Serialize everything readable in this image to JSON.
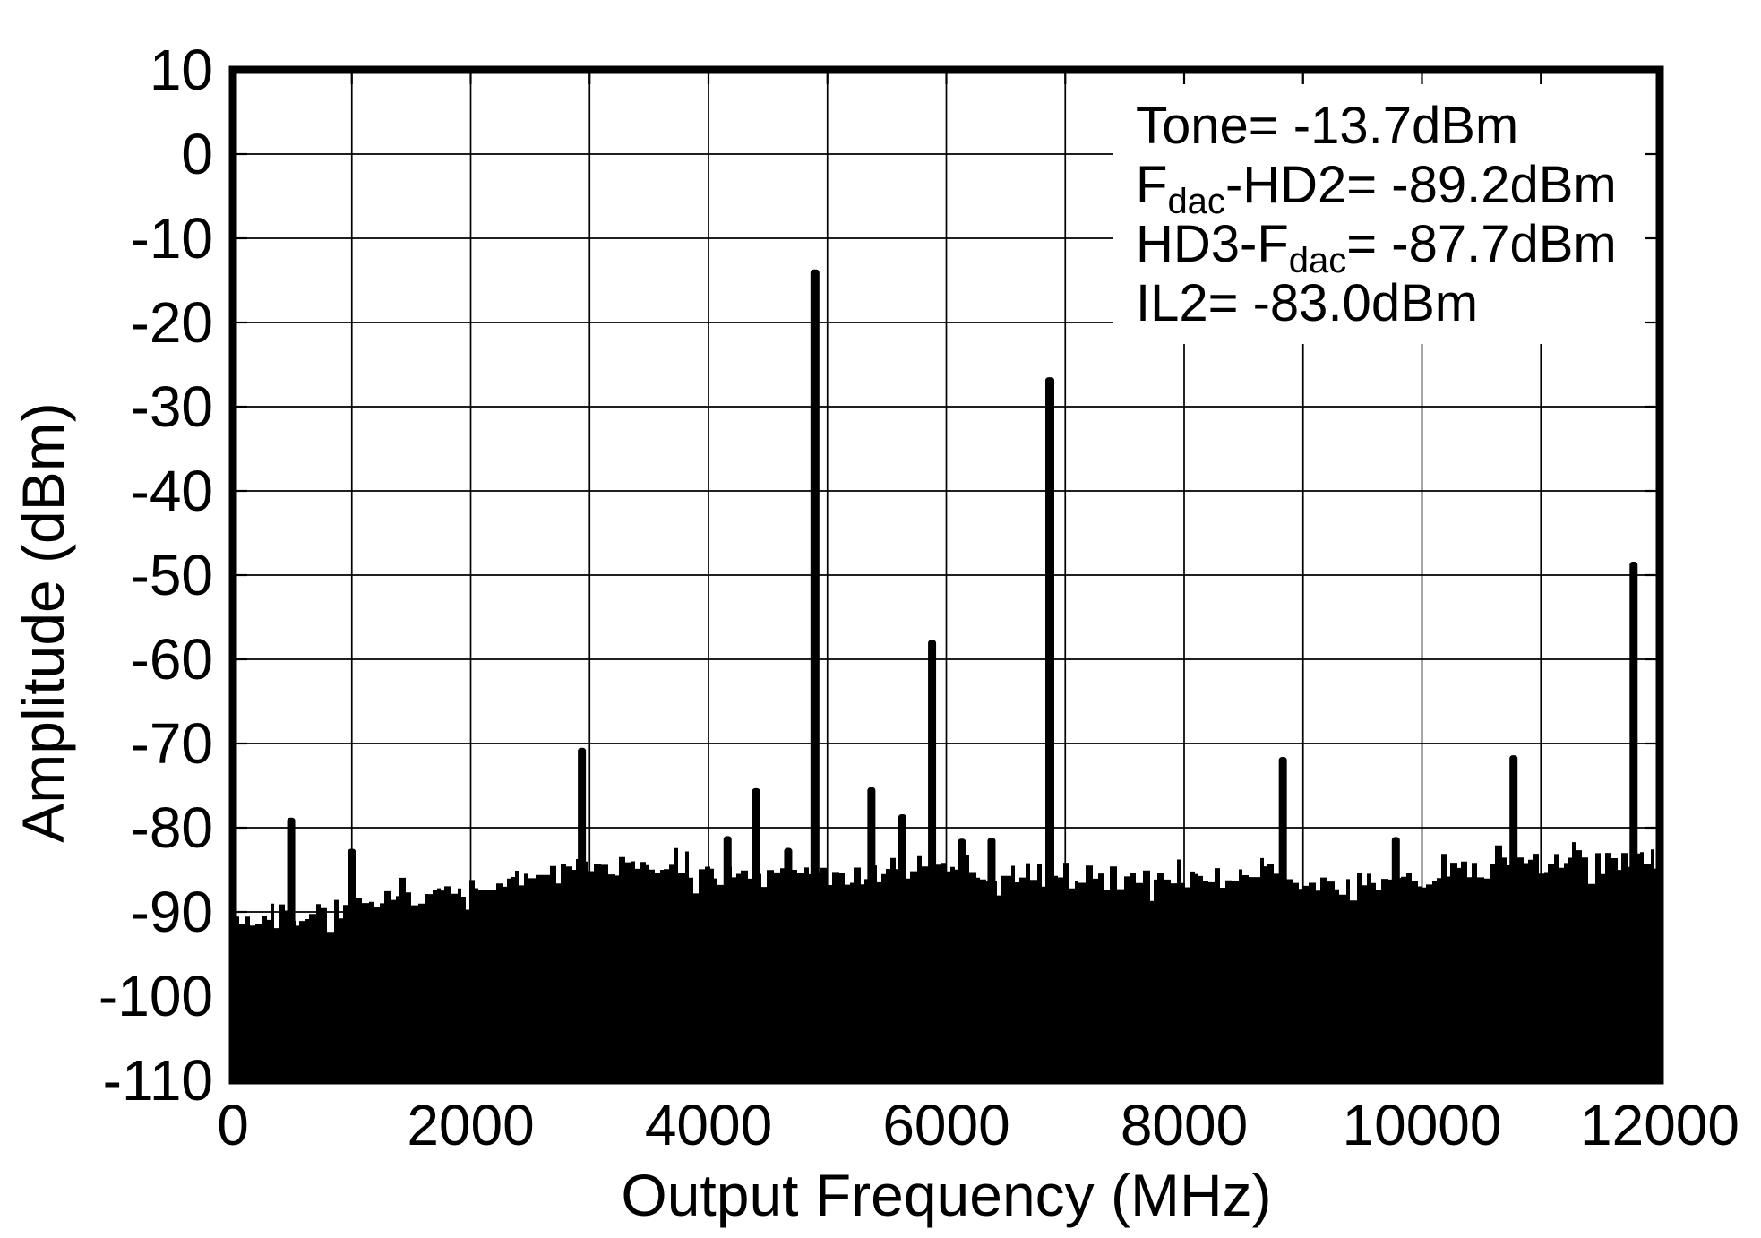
{
  "page": {
    "background": "#ffffff"
  },
  "chart_data": {
    "type": "area",
    "title": "",
    "xlabel": "Output Frequency (MHz)",
    "ylabel": "Amplitude (dBm)",
    "xlim": [
      0,
      12000
    ],
    "ylim": [
      -110,
      10
    ],
    "x_ticks": [
      0,
      2000,
      4000,
      6000,
      8000,
      10000,
      12000
    ],
    "x_gridline_step": 1000,
    "y_ticks": [
      10,
      0,
      -10,
      -20,
      -30,
      -40,
      -50,
      -60,
      -70,
      -80,
      -90,
      -100,
      -110
    ],
    "y_gridline_step": 10,
    "grid": true,
    "legend_position": "top-right-inside",
    "annotations": [
      "Tone= -13.7dBm",
      "F_{dac}-HD2= -89.2dBm",
      "HD3-F_{dac}= -87.7dBm",
      "IL2= -83.0dBm"
    ],
    "series": [
      {
        "name": "spurs",
        "render": "vertical-bars",
        "points_mhz_dbm": [
          [
            490,
            -78.8
          ],
          [
            1000,
            -82.5
          ],
          [
            2935,
            -70.5
          ],
          [
            4160,
            -81.0
          ],
          [
            4400,
            -75.3
          ],
          [
            4670,
            -82.4
          ],
          [
            4895,
            -13.7
          ],
          [
            5370,
            -75.2
          ],
          [
            5630,
            -78.4
          ],
          [
            5880,
            -57.7
          ],
          [
            6130,
            -81.3
          ],
          [
            6380,
            -81.2
          ],
          [
            6870,
            -26.5
          ],
          [
            8830,
            -71.6
          ],
          [
            9780,
            -81.1
          ],
          [
            10770,
            -71.4
          ],
          [
            11780,
            -48.4
          ]
        ]
      },
      {
        "name": "noise-floor",
        "render": "filled-noise",
        "base_dbm": -110,
        "jitter_dbm": 1.25,
        "envelope_mhz_dbm": [
          [
            0,
            -90.3
          ],
          [
            150,
            -91.0
          ],
          [
            400,
            -90.8
          ],
          [
            700,
            -90.2
          ],
          [
            1000,
            -89.3
          ],
          [
            1400,
            -88.6
          ],
          [
            1800,
            -88.0
          ],
          [
            2100,
            -87.2
          ],
          [
            2400,
            -86.2
          ],
          [
            2700,
            -85.3
          ],
          [
            3000,
            -84.8
          ],
          [
            3300,
            -84.6
          ],
          [
            3600,
            -85.0
          ],
          [
            4000,
            -85.4
          ],
          [
            4400,
            -85.6
          ],
          [
            4800,
            -85.9
          ],
          [
            5200,
            -85.6
          ],
          [
            5600,
            -85.4
          ],
          [
            6000,
            -85.3
          ],
          [
            6400,
            -85.6
          ],
          [
            6800,
            -85.9
          ],
          [
            7200,
            -86.0
          ],
          [
            7600,
            -86.3
          ],
          [
            8000,
            -85.9
          ],
          [
            8400,
            -86.1
          ],
          [
            8800,
            -86.3
          ],
          [
            9200,
            -86.4
          ],
          [
            9600,
            -86.6
          ],
          [
            10000,
            -86.0
          ],
          [
            10300,
            -85.2
          ],
          [
            10600,
            -84.7
          ],
          [
            11000,
            -84.3
          ],
          [
            11400,
            -84.5
          ],
          [
            11700,
            -84.2
          ],
          [
            11900,
            -83.6
          ],
          [
            12000,
            -83.9
          ]
        ]
      }
    ],
    "colors": {
      "data": "#000000",
      "grid": "#000000",
      "frame": "#000000",
      "background": "#ffffff"
    }
  }
}
